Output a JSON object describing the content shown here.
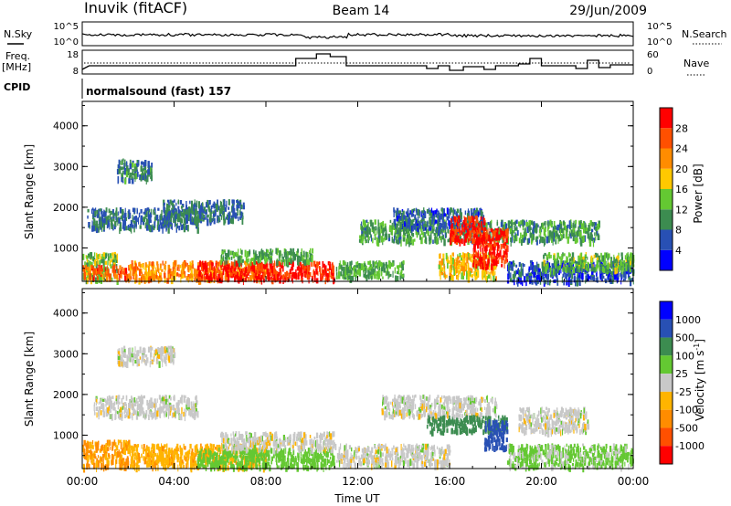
{
  "header": {
    "station": "Inuvik (fitACF)",
    "beam": "Beam 14",
    "date": "29/Jun/2009"
  },
  "panels": {
    "noise": {
      "left_label": "N.Sky",
      "right_label": "N.Search",
      "left_ticks": [
        "10^5",
        "10^0"
      ],
      "right_ticks": [
        "10^5",
        "10^0"
      ]
    },
    "freq": {
      "left_label_line1": "Freq.",
      "left_label_line2": "[MHz]",
      "right_label": "Nave",
      "left_ticks": [
        "18",
        "8"
      ],
      "right_ticks": [
        "60",
        "0"
      ]
    },
    "cpid": {
      "label": "CPID",
      "mode": "normalsound (fast) 157"
    }
  },
  "colors": {
    "power_scale": [
      "#0000ff",
      "#2850b4",
      "#3c8c50",
      "#64c832",
      "#ffc800",
      "#ff8c00",
      "#ff5000",
      "#ff0000"
    ],
    "velocity_scale": [
      "#ff0000",
      "#ff5000",
      "#ff8c00",
      "#ffb400",
      "#c8c8c8",
      "#64c832",
      "#3c8c50",
      "#2850b4",
      "#0000ff"
    ],
    "noise_trace": "#000000",
    "search_trace": "#000000"
  },
  "chart_data": [
    {
      "type": "heatmap",
      "name": "power",
      "ylabel": "Slant Range [km]",
      "ylim": [
        180,
        4600
      ],
      "yticks": [
        "1000",
        "2000",
        "3000",
        "4000"
      ],
      "xlim": [
        0,
        24
      ],
      "xticks": [
        "00:00",
        "04:00",
        "08:00",
        "12:00",
        "16:00",
        "20:00",
        "00:00"
      ],
      "colorbar": {
        "label": "Power [dB]",
        "ticks": [
          "4",
          "8",
          "12",
          "16",
          "20",
          "24",
          "28"
        ],
        "range": [
          0,
          32
        ]
      },
      "regions": [
        {
          "t": [
            0.0,
            1.5
          ],
          "r": [
            250,
            900
          ],
          "v": 14
        },
        {
          "t": [
            0.0,
            2.0
          ],
          "r": [
            300,
            600
          ],
          "v": 26
        },
        {
          "t": [
            0.2,
            5.0
          ],
          "r": [
            1500,
            2000
          ],
          "v": 8
        },
        {
          "t": [
            1.5,
            3.0
          ],
          "r": [
            2700,
            3200
          ],
          "v": 9
        },
        {
          "t": [
            2.0,
            8.0
          ],
          "r": [
            250,
            700
          ],
          "v": 22
        },
        {
          "t": [
            5.0,
            11.0
          ],
          "r": [
            250,
            700
          ],
          "v": 29
        },
        {
          "t": [
            6.0,
            10.0
          ],
          "r": [
            700,
            1000
          ],
          "v": 12
        },
        {
          "t": [
            3.5,
            7.0
          ],
          "r": [
            1700,
            2200
          ],
          "v": 8
        },
        {
          "t": [
            11.0,
            14.0
          ],
          "r": [
            300,
            700
          ],
          "v": 12
        },
        {
          "t": [
            12.0,
            22.5
          ],
          "r": [
            1200,
            1700
          ],
          "v": 11
        },
        {
          "t": [
            13.5,
            17.5
          ],
          "r": [
            1500,
            2000
          ],
          "v": 7
        },
        {
          "t": [
            15.5,
            18.0
          ],
          "r": [
            300,
            900
          ],
          "v": 18
        },
        {
          "t": [
            16.0,
            17.5
          ],
          "r": [
            1200,
            1800
          ],
          "v": 29
        },
        {
          "t": [
            17.0,
            18.5
          ],
          "r": [
            600,
            1500
          ],
          "v": 29
        },
        {
          "t": [
            18.5,
            24.0
          ],
          "r": [
            200,
            700
          ],
          "v": 6
        },
        {
          "t": [
            20.0,
            24.0
          ],
          "r": [
            500,
            900
          ],
          "v": 13
        }
      ]
    },
    {
      "type": "heatmap",
      "name": "velocity",
      "ylabel": "Slant Range [km]",
      "ylim": [
        180,
        4600
      ],
      "yticks": [
        "1000",
        "2000",
        "3000",
        "4000"
      ],
      "xlim": [
        0,
        24
      ],
      "xticks": [
        "00:00",
        "04:00",
        "08:00",
        "12:00",
        "16:00",
        "20:00",
        "00:00"
      ],
      "xlabel": "Time UT",
      "colorbar": {
        "label": "Velocity [m s^-1]",
        "ticks": [
          "1000",
          "500",
          "100",
          "25",
          "-25",
          "-100",
          "-500",
          "-1000"
        ]
      },
      "regions": [
        {
          "t": [
            0.0,
            2.0
          ],
          "r": [
            250,
            900
          ],
          "v": -100
        },
        {
          "t": [
            0.5,
            5.0
          ],
          "r": [
            1500,
            2000
          ],
          "v": 0
        },
        {
          "t": [
            1.5,
            4.0
          ],
          "r": [
            2800,
            3200
          ],
          "v": 0
        },
        {
          "t": [
            2.0,
            8.0
          ],
          "r": [
            250,
            800
          ],
          "v": -80
        },
        {
          "t": [
            5.0,
            11.0
          ],
          "r": [
            250,
            700
          ],
          "v": 60
        },
        {
          "t": [
            6.0,
            11.0
          ],
          "r": [
            700,
            1100
          ],
          "v": 0
        },
        {
          "t": [
            11.0,
            16.0
          ],
          "r": [
            300,
            800
          ],
          "v": 0
        },
        {
          "t": [
            13.0,
            18.0
          ],
          "r": [
            1500,
            2000
          ],
          "v": 0
        },
        {
          "t": [
            15.0,
            18.5
          ],
          "r": [
            1100,
            1500
          ],
          "v": 200
        },
        {
          "t": [
            17.5,
            18.5
          ],
          "r": [
            700,
            1400
          ],
          "v": 900
        },
        {
          "t": [
            18.5,
            24.0
          ],
          "r": [
            250,
            800
          ],
          "v": 40
        },
        {
          "t": [
            19.0,
            22.0
          ],
          "r": [
            1100,
            1700
          ],
          "v": 0
        }
      ]
    }
  ]
}
